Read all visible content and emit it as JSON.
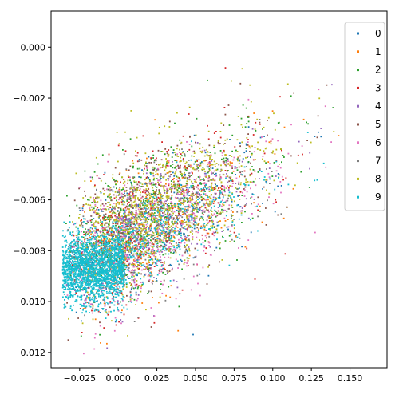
{
  "chart_data": {
    "type": "scatter",
    "title": "",
    "xlabel": "",
    "ylabel": "",
    "xlim": [
      -0.0435,
      0.174
    ],
    "ylim": [
      -0.0126,
      0.00142
    ],
    "xticks": [
      -0.025,
      0.0,
      0.025,
      0.05,
      0.075,
      0.1,
      0.125,
      0.15
    ],
    "xtick_labels": [
      "−0.025",
      "0.000",
      "0.025",
      "0.050",
      "0.075",
      "0.100",
      "0.125",
      "0.150"
    ],
    "yticks": [
      0.0,
      -0.002,
      -0.004,
      -0.006,
      -0.008,
      -0.01,
      -0.012
    ],
    "ytick_labels": [
      "0.000",
      "−0.002",
      "−0.004",
      "−0.006",
      "−0.008",
      "−0.010",
      "−0.012"
    ],
    "grid": false,
    "legend_position": "top-right",
    "series": [
      {
        "name": "0",
        "color": "#1f77b4",
        "center": [
          0.03,
          -0.0075
        ],
        "spread": [
          0.035,
          0.0012
        ],
        "count": 380
      },
      {
        "name": "1",
        "color": "#ff7f0e",
        "center": [
          0.03,
          -0.0074
        ],
        "spread": [
          0.035,
          0.0012
        ],
        "count": 300
      },
      {
        "name": "2",
        "color": "#2ca02c",
        "center": [
          0.035,
          -0.0062
        ],
        "spread": [
          0.035,
          0.0013
        ],
        "count": 600
      },
      {
        "name": "3",
        "color": "#d62728",
        "center": [
          0.035,
          -0.0072
        ],
        "spread": [
          0.035,
          0.0013
        ],
        "count": 450
      },
      {
        "name": "4",
        "color": "#9467bd",
        "center": [
          0.03,
          -0.0078
        ],
        "spread": [
          0.03,
          0.0011
        ],
        "count": 380
      },
      {
        "name": "5",
        "color": "#8c564b",
        "center": [
          0.035,
          -0.0068
        ],
        "spread": [
          0.035,
          0.0013
        ],
        "count": 420
      },
      {
        "name": "6",
        "color": "#e377c2",
        "center": [
          0.045,
          -0.0078
        ],
        "spread": [
          0.035,
          0.0012
        ],
        "count": 600
      },
      {
        "name": "7",
        "color": "#7f7f7f",
        "center": [
          0.03,
          -0.0072
        ],
        "spread": [
          0.03,
          0.0012
        ],
        "count": 300
      },
      {
        "name": "8",
        "color": "#bcbd22",
        "center": [
          0.03,
          -0.0064
        ],
        "spread": [
          0.035,
          0.0012
        ],
        "count": 1000
      },
      {
        "name": "9",
        "color": "#17becf",
        "center": [
          0.005,
          -0.0087
        ],
        "spread": [
          0.03,
          0.0008
        ],
        "count": 2200
      }
    ]
  }
}
